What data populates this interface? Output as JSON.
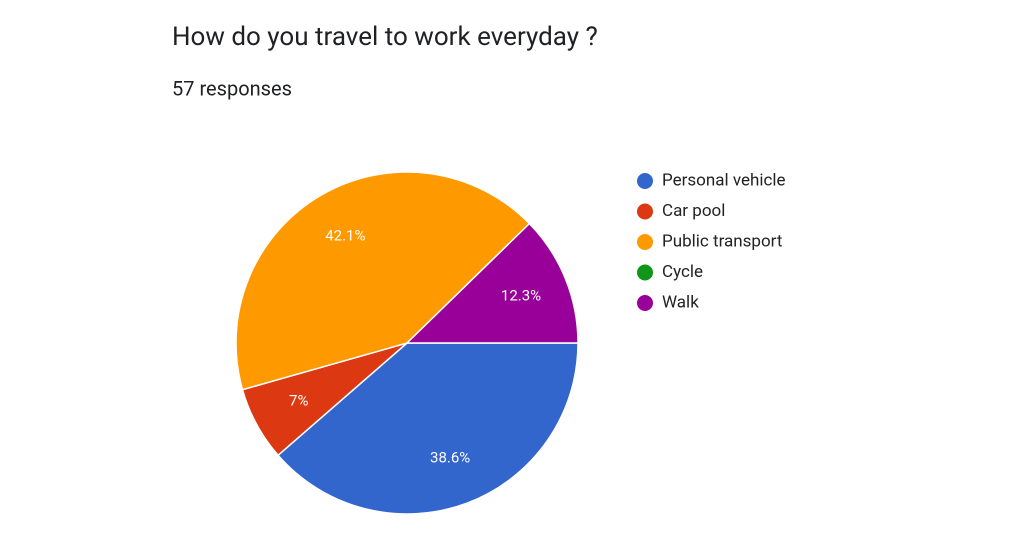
{
  "chart_data": {
    "type": "pie",
    "title": "How do you travel to work everyday ?",
    "subtitle": "57 responses",
    "categories": [
      "Personal vehicle",
      "Car pool",
      "Public transport",
      "Cycle",
      "Walk"
    ],
    "values": [
      38.6,
      7,
      42.1,
      0,
      12.3
    ],
    "value_labels": [
      "38.6%",
      "7%",
      "42.1%",
      null,
      "12.3%"
    ],
    "colors": [
      "#3366cc",
      "#dc3912",
      "#ff9900",
      "#109618",
      "#990099"
    ],
    "legend": "right"
  }
}
